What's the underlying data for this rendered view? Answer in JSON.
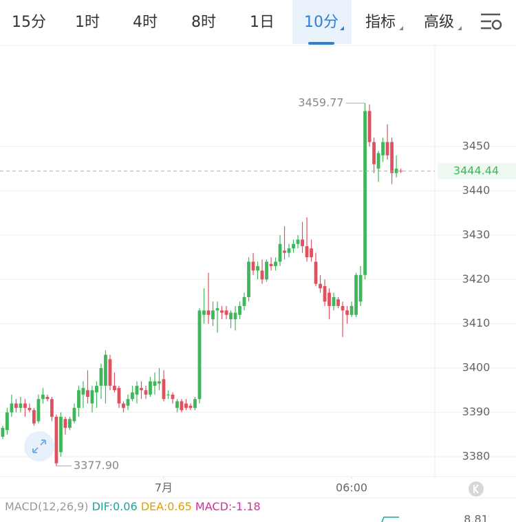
{
  "tabs": [
    {
      "label": "15分"
    },
    {
      "label": "1时"
    },
    {
      "label": "4时"
    },
    {
      "label": "8时"
    },
    {
      "label": "1日"
    },
    {
      "label": "10分",
      "selected": true,
      "dropdown": true
    },
    {
      "label": "指标",
      "dropdown": true
    },
    {
      "label": "高级",
      "dropdown": true
    }
  ],
  "chart_data": {
    "type": "candlestick",
    "open": [
      3384.5,
      3386,
      3390,
      3392,
      3391,
      3392,
      3391,
      3390.5,
      3388,
      3393,
      3393.5,
      3393,
      3389,
      3381,
      3388.5,
      3386.5,
      3388,
      3391,
      3394,
      3395,
      3392,
      3394.5,
      3396,
      3396,
      3402,
      3396,
      3395.5,
      3392,
      3391.5,
      3393,
      3394,
      3395.5,
      3395,
      3394,
      3396,
      3396.5,
      3397.5,
      3394,
      3394,
      3391,
      3392.5,
      3392,
      3391.5,
      3391,
      3393,
      3412,
      3413,
      3411,
      3413,
      3413,
      3413,
      3411,
      3411,
      3412,
      3414,
      3416,
      3424,
      3422,
      3422,
      3420,
      3423.5,
      3423,
      3424,
      3426.5,
      3426,
      3427,
      3428,
      3429,
      3427.5,
      3427,
      3424,
      3419,
      3418.5,
      3417,
      3414,
      3415.5,
      3414,
      3413,
      3412,
      3412,
      3415,
      3421,
      3458,
      3451,
      3445,
      3448,
      3451,
      3451,
      3444,
      3444.5
    ],
    "high": [
      3387,
      3391,
      3394,
      3393,
      3393.5,
      3393,
      3392,
      3391,
      3394,
      3395.5,
      3394,
      3393.5,
      3389.5,
      3390,
      3389,
      3389,
      3392,
      3396,
      3397,
      3399.5,
      3396,
      3397,
      3401,
      3404,
      3403,
      3399,
      3396,
      3392.5,
      3394,
      3396,
      3397,
      3397,
      3396,
      3398,
      3399,
      3400,
      3399.5,
      3395,
      3394.5,
      3393,
      3393,
      3393,
      3392,
      3393.5,
      3413.5,
      3418,
      3421.5,
      3415,
      3415,
      3414,
      3414,
      3413,
      3414,
      3415,
      3417,
      3425,
      3426,
      3424,
      3424.5,
      3424.5,
      3425,
      3425,
      3430,
      3432,
      3428,
      3429,
      3430,
      3433,
      3434,
      3429,
      3426,
      3421,
      3420,
      3418,
      3417,
      3416,
      3415,
      3414,
      3415,
      3421.5,
      3423,
      3459.77,
      3459.5,
      3452,
      3449,
      3452,
      3455,
      3452,
      3448,
      3445
    ],
    "low": [
      3384,
      3385,
      3389,
      3390,
      3390,
      3389,
      3390,
      3387,
      3387.5,
      3392,
      3392.5,
      3388,
      3377.9,
      3380,
      3385,
      3386,
      3387.5,
      3389,
      3391,
      3392,
      3390,
      3391,
      3393,
      3392,
      3395,
      3394.5,
      3391,
      3390,
      3390.5,
      3392.5,
      3392,
      3393,
      3393,
      3393.5,
      3394,
      3395,
      3392.5,
      3393,
      3392,
      3390,
      3390,
      3390.5,
      3390.5,
      3390.5,
      3392,
      3410,
      3410,
      3409.5,
      3408,
      3411,
      3411,
      3409,
      3408.5,
      3411,
      3413,
      3415,
      3421,
      3420,
      3419,
      3419.5,
      3422,
      3422,
      3423,
      3424.5,
      3425,
      3426,
      3427,
      3426,
      3424,
      3424,
      3418.5,
      3417,
      3414,
      3411,
      3413,
      3413.5,
      3407,
      3410,
      3411.5,
      3411.5,
      3414,
      3420,
      3450,
      3444,
      3442,
      3446.5,
      3447,
      3441.5,
      3443,
      3444
    ],
    "close": [
      3386.5,
      3390,
      3392,
      3391,
      3392,
      3391,
      3390.5,
      3387.5,
      3393,
      3394,
      3393,
      3389,
      3378.5,
      3389,
      3386.5,
      3388.5,
      3391,
      3395,
      3395.5,
      3393.5,
      3395,
      3396,
      3400,
      3403,
      3396,
      3395,
      3392,
      3391,
      3393,
      3394.5,
      3396,
      3395,
      3394,
      3397,
      3397,
      3397,
      3393,
      3394,
      3393,
      3392.5,
      3390.5,
      3391,
      3391,
      3393,
      3413,
      3413,
      3412,
      3413,
      3413.5,
      3412.5,
      3412,
      3412.5,
      3412.5,
      3414,
      3416,
      3424,
      3422,
      3423,
      3420,
      3424,
      3423,
      3424,
      3428,
      3426,
      3427,
      3428,
      3429,
      3427.5,
      3425,
      3425,
      3419,
      3418,
      3415,
      3414,
      3416,
      3414,
      3413,
      3412,
      3414,
      3421,
      3421,
      3458,
      3451,
      3446,
      3448.5,
      3451,
      3448,
      3444,
      3445,
      3444.44
    ],
    "up_color": "#3fb65a",
    "down_color": "#e0505f",
    "xlim": [
      -0.6,
      96.6
    ],
    "xticks": [
      {
        "value": 36,
        "label": "7月"
      },
      {
        "value": 78,
        "label": "06:00"
      }
    ],
    "ylim": [
      3375.5,
      3472.5
    ],
    "yticks": [
      3380,
      3390,
      3400,
      3410,
      3420,
      3430,
      3440,
      3450
    ],
    "grid": true,
    "last_price": {
      "value": 3444.44,
      "label": "3444.44",
      "color": "#3fb65a"
    },
    "annotations": [
      {
        "index": 81,
        "value": 3459.77,
        "label": "3459.77",
        "side": "left"
      },
      {
        "index": 12,
        "value": 3377.9,
        "label": "3377.90",
        "side": "right"
      }
    ]
  },
  "indicator": {
    "name": "MACD(12,26,9)",
    "items": [
      {
        "text": "DIF:0.06",
        "color": "#1aa3a3"
      },
      {
        "text": "DEA:0.65",
        "color": "#e0a100"
      },
      {
        "text": "MACD:-1.18",
        "color": "#d0309a"
      }
    ],
    "axis_label": "8.81"
  }
}
